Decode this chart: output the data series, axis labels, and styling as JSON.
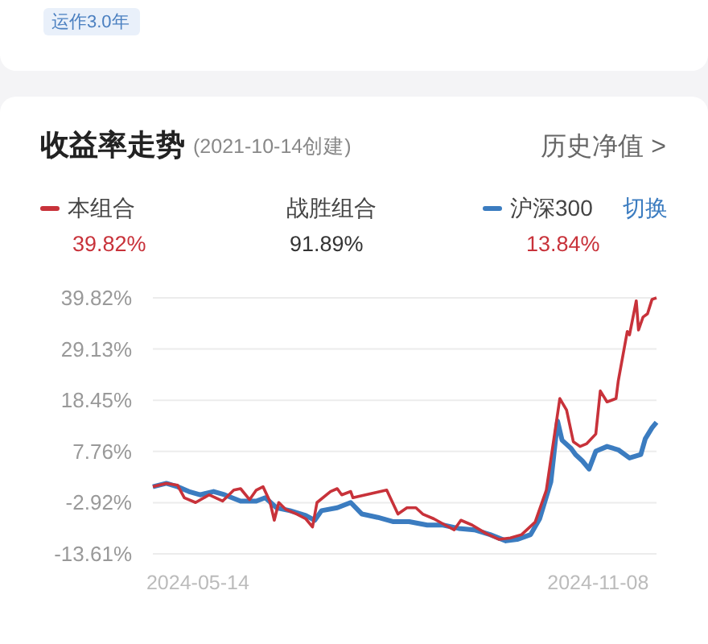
{
  "chart_data": {
    "type": "line",
    "title": "收益率走势",
    "subtitle": "(2021-10-14创建)",
    "annotations": [
      "运作3.0年",
      "历史净值 >",
      "39.82%",
      "战胜组合",
      "91.89%",
      "13.84%",
      "切换"
    ],
    "xlim": [
      "2024-04-24",
      "2024-12-04"
    ],
    "xticks": [
      "2024-05-14",
      "2024-11-08"
    ],
    "ylim": [
      -13.61,
      39.82
    ],
    "yticks": [
      {
        "value": 39.82,
        "label": "39.82%"
      },
      {
        "value": 29.13,
        "label": "29.13%"
      },
      {
        "value": 18.45,
        "label": "18.45%"
      },
      {
        "value": 7.76,
        "label": "7.76%"
      },
      {
        "value": -2.92,
        "label": "-2.92%"
      },
      {
        "value": -13.61,
        "label": "-13.61%"
      }
    ],
    "grid": "y",
    "legend": "top",
    "series": [
      {
        "name": "本组合",
        "type": "line",
        "color": "#c8323a",
        "x": [
          "2024-04-24",
          "2024-04-30",
          "2024-05-05",
          "2024-05-08",
          "2024-05-13",
          "2024-05-19",
          "2024-05-25",
          "2024-05-30",
          "2024-06-02",
          "2024-06-06",
          "2024-06-09",
          "2024-06-12",
          "2024-06-15",
          "2024-06-17",
          "2024-06-19",
          "2024-06-22",
          "2024-06-27",
          "2024-07-01",
          "2024-07-04",
          "2024-07-06",
          "2024-07-12",
          "2024-07-15",
          "2024-07-17",
          "2024-07-21",
          "2024-07-22",
          "2024-08-06",
          "2024-08-11",
          "2024-08-15",
          "2024-08-19",
          "2024-08-22",
          "2024-08-27",
          "2024-09-01",
          "2024-09-05",
          "2024-09-08",
          "2024-09-13",
          "2024-09-19",
          "2024-09-25",
          "2024-09-30",
          "2024-10-05",
          "2024-10-11",
          "2024-10-16",
          "2024-10-22",
          "2024-10-25",
          "2024-10-28",
          "2024-10-31",
          "2024-11-03",
          "2024-11-07",
          "2024-11-09",
          "2024-11-12",
          "2024-11-16",
          "2024-11-17",
          "2024-11-21",
          "2024-11-22",
          "2024-11-25",
          "2024-11-26",
          "2024-11-28",
          "2024-11-30",
          "2024-12-02",
          "2024-12-04"
        ],
        "values": [
          0.4,
          1.1,
          0.7,
          -1.9,
          -2.9,
          -1.3,
          -2.6,
          -0.3,
          0,
          -2.3,
          -0.3,
          0.4,
          -2.6,
          -6.6,
          -2.9,
          -4.3,
          -5.3,
          -6.3,
          -8.0,
          -2.9,
          -0.6,
          0,
          -1.3,
          -0.6,
          -1.9,
          -0.3,
          -5.3,
          -4.0,
          -4.0,
          -5.3,
          -6.3,
          -7.6,
          -8.6,
          -6.6,
          -7.6,
          -9.3,
          -10.6,
          -10.3,
          -9.6,
          -7.0,
          -0.3,
          18.8,
          16.4,
          9.8,
          8.8,
          9.4,
          11.4,
          20.4,
          18.1,
          18.8,
          22.5,
          32.8,
          32.1,
          39.2,
          33.1,
          35.8,
          36.5,
          39.5,
          39.82
        ]
      },
      {
        "name": "沪深300",
        "type": "line",
        "color": "#3b7cc0",
        "x": [
          "2024-04-24",
          "2024-04-30",
          "2024-05-05",
          "2024-05-10",
          "2024-05-15",
          "2024-05-21",
          "2024-05-26",
          "2024-06-02",
          "2024-06-09",
          "2024-06-13",
          "2024-06-18",
          "2024-06-24",
          "2024-07-01",
          "2024-07-05",
          "2024-07-08",
          "2024-07-15",
          "2024-07-21",
          "2024-07-26",
          "2024-08-02",
          "2024-08-09",
          "2024-08-16",
          "2024-08-24",
          "2024-08-31",
          "2024-09-07",
          "2024-09-14",
          "2024-09-21",
          "2024-09-28",
          "2024-10-03",
          "2024-10-09",
          "2024-10-13",
          "2024-10-18",
          "2024-10-21",
          "2024-10-23",
          "2024-10-27",
          "2024-10-29",
          "2024-11-01",
          "2024-11-04",
          "2024-11-07",
          "2024-11-12",
          "2024-11-17",
          "2024-11-22",
          "2024-11-27",
          "2024-11-29",
          "2024-12-02",
          "2024-12-04"
        ],
        "values": [
          0.4,
          1.1,
          0.4,
          -0.6,
          -1.3,
          -0.6,
          -1.3,
          -2.6,
          -2.6,
          -1.9,
          -4.0,
          -4.6,
          -5.6,
          -6.6,
          -4.6,
          -4.0,
          -2.9,
          -5.3,
          -6.0,
          -6.9,
          -6.9,
          -7.6,
          -7.6,
          -8.3,
          -8.6,
          -9.6,
          -10.9,
          -10.6,
          -9.6,
          -6.3,
          1.4,
          14.1,
          10.1,
          8.4,
          7.1,
          5.8,
          4.1,
          7.8,
          8.8,
          8.1,
          6.4,
          7.1,
          10.4,
          12.7,
          13.84
        ]
      }
    ]
  }
}
